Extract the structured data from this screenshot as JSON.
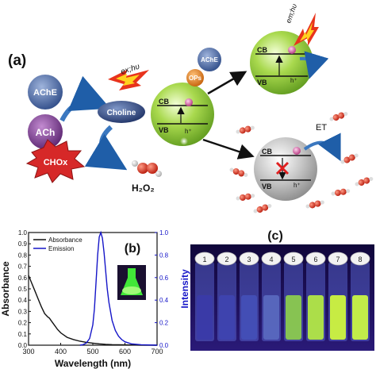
{
  "panel_a": {
    "label": "(a)",
    "ache_top": "AChE",
    "ach": "ACh",
    "choline": "Choline",
    "chox": "CHOx",
    "h2o2": "H₂O₂",
    "ex_label": "ex;hυ",
    "em_label": "em;hυ",
    "ops": "OPs",
    "ache_small": "AChE",
    "cb": "CB",
    "vb": "VB",
    "et": "ET",
    "hole": "h⁺"
  },
  "panel_b": {
    "label": "(b)",
    "legend": [
      "Absorbance",
      "Emission"
    ]
  },
  "panel_c": {
    "label": "(c)",
    "vial_labels": [
      "1",
      "2",
      "3",
      "4",
      "5",
      "6",
      "7",
      "8"
    ]
  },
  "chart_data": {
    "type": "line",
    "xlabel": "Wavelength (nm)",
    "ylabel": "Absorbance",
    "y2label": "Intensity",
    "xlim": [
      300,
      700
    ],
    "ylim": [
      0,
      1.0
    ],
    "y2lim": [
      0,
      1.0
    ],
    "xticks": [
      300,
      400,
      500,
      600,
      700
    ],
    "yticks": [
      "0.0",
      "0.1",
      "0.2",
      "0.3",
      "0.4",
      "0.5",
      "0.6",
      "0.7",
      "0.8",
      "0.9",
      "1.0"
    ],
    "y2ticks": [
      "0.0",
      "0.2",
      "0.4",
      "0.6",
      "0.8",
      "1.0"
    ],
    "series": [
      {
        "name": "Absorbance",
        "color": "#111111",
        "axis": "left",
        "x": [
          300,
          310,
          320,
          330,
          340,
          350,
          360,
          365,
          370,
          380,
          390,
          400,
          420,
          440,
          460,
          480,
          500,
          520,
          540,
          560,
          600,
          650,
          700
        ],
        "y": [
          0.62,
          0.55,
          0.48,
          0.41,
          0.34,
          0.28,
          0.25,
          0.24,
          0.22,
          0.18,
          0.14,
          0.11,
          0.07,
          0.05,
          0.035,
          0.025,
          0.018,
          0.012,
          0.008,
          0.005,
          0.003,
          0.001,
          0.0
        ]
      },
      {
        "name": "Emission",
        "color": "#1515c8",
        "axis": "right",
        "x": [
          460,
          470,
          480,
          490,
          500,
          505,
          510,
          515,
          520,
          525,
          530,
          535,
          540,
          545,
          550,
          560,
          570,
          580,
          590,
          600,
          620,
          650,
          700
        ],
        "y": [
          0.0,
          0.005,
          0.02,
          0.06,
          0.18,
          0.32,
          0.55,
          0.8,
          0.96,
          1.0,
          0.95,
          0.82,
          0.66,
          0.5,
          0.38,
          0.22,
          0.13,
          0.08,
          0.05,
          0.03,
          0.012,
          0.004,
          0.0
        ]
      }
    ]
  },
  "colors": {
    "sphere_green": "#8cc63f",
    "sphere_grey": "#b5b5b5",
    "ache_blue": "#4e6fae",
    "ach_purple": "#7a3f8f",
    "chox_red": "#d62828",
    "ops_orange": "#e07a18",
    "arrow_blue": "#3b78c0",
    "burst_red": "#e8331c",
    "burst_yellow": "#ffd21f"
  }
}
